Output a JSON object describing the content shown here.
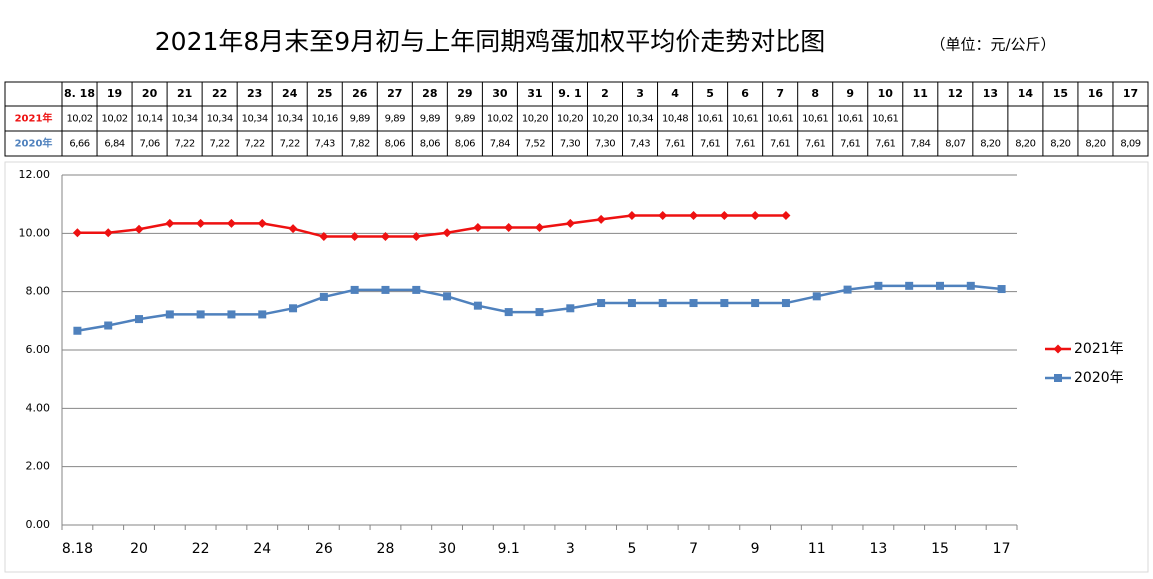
{
  "chart_data": {
    "type": "line",
    "title": "2021年8月末至9月初与上年同期鸡蛋加权平均价走势对比图",
    "subtitle": "（单位：元/公斤）",
    "table_header": [
      "8. 18",
      "19",
      "20",
      "21",
      "22",
      "23",
      "24",
      "25",
      "26",
      "27",
      "28",
      "29",
      "30",
      "31",
      "9. 1",
      "2",
      "3",
      "4",
      "5",
      "6",
      "7",
      "8",
      "9",
      "10",
      "11",
      "12",
      "13",
      "14",
      "15",
      "16",
      "17"
    ],
    "categories": [
      "8.18",
      null,
      "20",
      null,
      "22",
      null,
      "24",
      null,
      "26",
      null,
      "28",
      null,
      "30",
      null,
      "9.1",
      null,
      "3",
      null,
      "5",
      null,
      "7",
      null,
      "9",
      null,
      "11",
      null,
      "13",
      null,
      "15",
      null,
      "17"
    ],
    "series": [
      {
        "name": "2021年",
        "color": "#ee1111",
        "marker": "diamond",
        "values": [
          10.02,
          10.02,
          10.14,
          10.34,
          10.34,
          10.34,
          10.34,
          10.16,
          9.89,
          9.89,
          9.89,
          9.89,
          10.02,
          10.2,
          10.2,
          10.2,
          10.34,
          10.48,
          10.61,
          10.61,
          10.61,
          10.61,
          10.61,
          10.61,
          null,
          null,
          null,
          null,
          null,
          null,
          null
        ],
        "value_labels": [
          "10,02",
          "10,02",
          "10,14",
          "10,34",
          "10,34",
          "10,34",
          "10,34",
          "10,16",
          "9,89",
          "9,89",
          "9,89",
          "9,89",
          "10,02",
          "10,20",
          "10,20",
          "10,20",
          "10,34",
          "10,48",
          "10,61",
          "10,61",
          "10,61",
          "10,61",
          "10,61",
          "10,61",
          null,
          null,
          null,
          null,
          null,
          null,
          null
        ]
      },
      {
        "name": "2020年",
        "color": "#4f81bd",
        "marker": "square",
        "values": [
          6.66,
          6.84,
          7.06,
          7.22,
          7.22,
          7.22,
          7.22,
          7.43,
          7.82,
          8.06,
          8.06,
          8.06,
          7.84,
          7.52,
          7.3,
          7.3,
          7.43,
          7.61,
          7.61,
          7.61,
          7.61,
          7.61,
          7.61,
          7.61,
          7.84,
          8.07,
          8.2,
          8.2,
          8.2,
          8.2,
          8.09
        ],
        "value_labels": [
          "6,66",
          "6,84",
          "7,06",
          "7,22",
          "7,22",
          "7,22",
          "7,22",
          "7,43",
          "7,82",
          "8,06",
          "8,06",
          "8,06",
          "7,84",
          "7,52",
          "7,30",
          "7,30",
          "7,43",
          "7,61",
          "7,61",
          "7,61",
          "7,61",
          "7,61",
          "7,61",
          "7,61",
          "7,84",
          "8,07",
          "8,20",
          "8,20",
          "8,20",
          "8,20",
          "8,09"
        ]
      }
    ],
    "ylim": [
      0,
      12
    ],
    "yticks": [
      {
        "value": 0,
        "label": "0.00"
      },
      {
        "value": 2,
        "label": "2.00"
      },
      {
        "value": 4,
        "label": "4.00"
      },
      {
        "value": 6,
        "label": "6.00"
      },
      {
        "value": 8,
        "label": "8.00"
      },
      {
        "value": 10,
        "label": "10.00"
      },
      {
        "value": 12,
        "label": "12.00"
      }
    ],
    "grid": true,
    "legend": "right"
  }
}
